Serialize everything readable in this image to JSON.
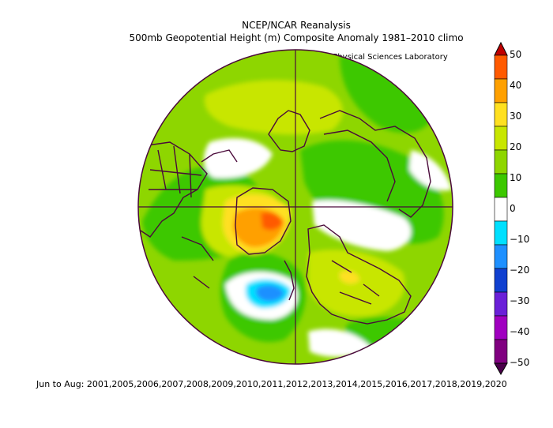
{
  "header": {
    "title": "NCEP/NCAR Reanalysis",
    "subtitle": "500mb Geopotential Height (m) Composite Anomaly 1981–2010 climo",
    "credit": "NOAA Physical Sciences Laboratory"
  },
  "footer": {
    "period": "Jun to Aug: 2001,2005,2006,2007,2008,2009,2010,2011,2012,2013,2014,2015,2016,2017,2018,2019,2020"
  },
  "colorbar": {
    "labels": [
      "50",
      "40",
      "30",
      "20",
      "10",
      "0",
      "−10",
      "−20",
      "−30",
      "−40",
      "−50"
    ],
    "colors": [
      "#c00000",
      "#ff5a00",
      "#ffa000",
      "#ffe020",
      "#c8e600",
      "#8ed600",
      "#3cc800",
      "#ffffff",
      "#00e0ff",
      "#1e90ff",
      "#1040d0",
      "#6a20d8",
      "#a000c0",
      "#800080",
      "#4a004a"
    ]
  },
  "map": {
    "projection": "north-polar-stereographic",
    "variable": "500mb geopotential height anomaly",
    "units": "m"
  }
}
